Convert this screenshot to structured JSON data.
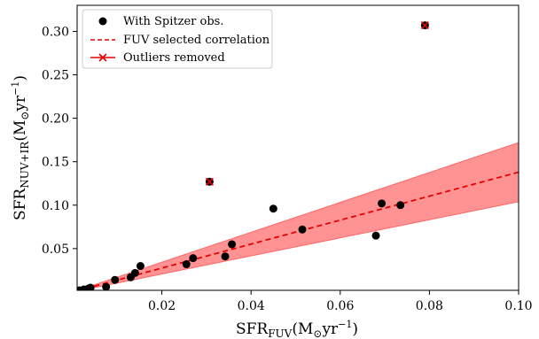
{
  "chart_data": {
    "type": "scatter",
    "xlabel": "SFR",
    "xlabel_sub": "FUV",
    "xlabel_unit": "(M",
    "xlabel_unit2": "yr",
    "xlabel_exp": "−1",
    "xlabel_close": ")",
    "ylabel": "SFR",
    "ylabel_sub": "NUV+IR",
    "ylabel_unit": "(M",
    "ylabel_unit2": "yr",
    "ylabel_exp": "−1",
    "ylabel_close": ")",
    "sun_symbol": "⊙",
    "xlim": [
      0.001,
      0.1
    ],
    "ylim": [
      0.002,
      0.33
    ],
    "xticks": [
      0.02,
      0.04,
      0.06,
      0.08,
      0.1
    ],
    "xtick_labels": [
      "0.02",
      "0.04",
      "0.06",
      "0.08",
      "0.10"
    ],
    "yticks": [
      0.05,
      0.1,
      0.15,
      0.2,
      0.25,
      0.3
    ],
    "ytick_labels": [
      "0.05",
      "0.10",
      "0.15",
      "0.20",
      "0.25",
      "0.30"
    ],
    "legend_position": "top-left",
    "legend": [
      {
        "label": "With Spitzer obs.",
        "marker": "dot"
      },
      {
        "label": "FUV selected correlation",
        "marker": "dashed-line"
      },
      {
        "label": "Outliers removed",
        "marker": "x-line"
      }
    ],
    "series": [
      {
        "name": "With Spitzer obs.",
        "color": "#000000",
        "points": [
          [
            0.0015,
            0.002
          ],
          [
            0.0025,
            0.003
          ],
          [
            0.0035,
            0.004
          ],
          [
            0.004,
            0.005
          ],
          [
            0.0075,
            0.006
          ],
          [
            0.0095,
            0.014
          ],
          [
            0.013,
            0.017
          ],
          [
            0.014,
            0.022
          ],
          [
            0.0152,
            0.03
          ],
          [
            0.0255,
            0.032
          ],
          [
            0.027,
            0.039
          ],
          [
            0.0342,
            0.041
          ],
          [
            0.0357,
            0.055
          ],
          [
            0.045,
            0.096
          ],
          [
            0.0515,
            0.072
          ],
          [
            0.068,
            0.065
          ],
          [
            0.0693,
            0.102
          ],
          [
            0.0735,
            0.1
          ],
          [
            0.0307,
            0.127
          ],
          [
            0.079,
            0.307
          ]
        ]
      },
      {
        "name": "Outliers removed",
        "color": "#e60000",
        "points": [
          [
            0.0307,
            0.127
          ],
          [
            0.079,
            0.307
          ]
        ]
      }
    ],
    "correlation": {
      "name": "FUV selected correlation",
      "color": "#e60000",
      "slope": 1.38,
      "slope_lower": 1.04,
      "slope_upper": 1.72,
      "band_color": "#ff8080"
    }
  }
}
